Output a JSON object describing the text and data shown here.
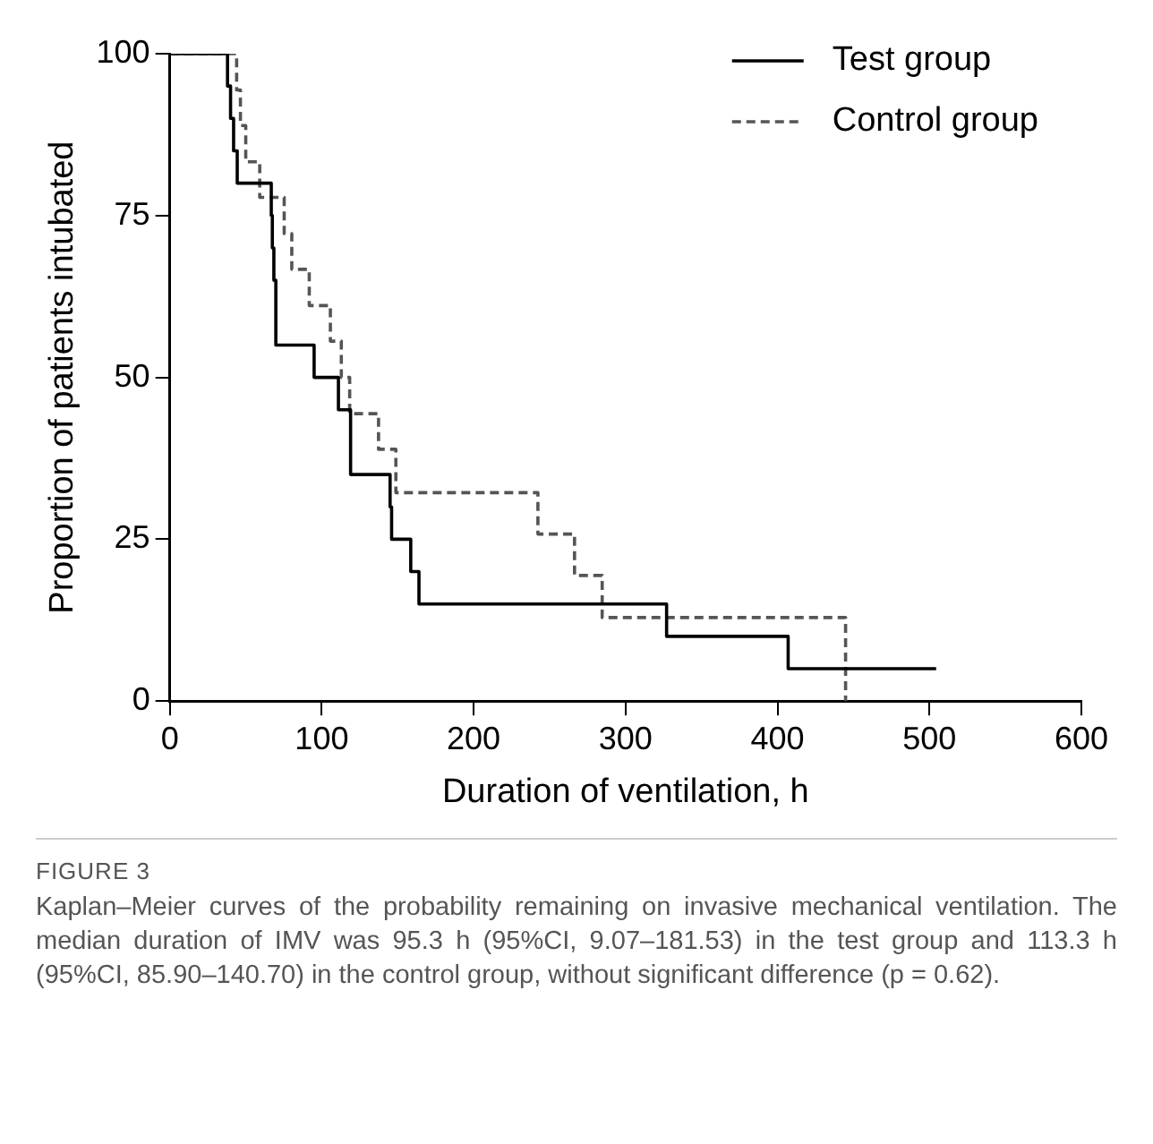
{
  "chart_data": {
    "type": "step",
    "xlabel": "Duration of ventilation, h",
    "ylabel": "Proportion of patients intubated",
    "xlim": [
      0,
      600
    ],
    "xticks": [
      0,
      100,
      200,
      300,
      400,
      500,
      600
    ],
    "ylim": [
      0,
      100
    ],
    "yticks": [
      0,
      25,
      50,
      75,
      100
    ],
    "grid": false,
    "legend": "top right",
    "marker": "none",
    "series": [
      {
        "name": "Test group",
        "color": "#000000",
        "line_style": "solid",
        "x": [
          0,
          38,
          40,
          42,
          44.4,
          66.8,
          67.5,
          68.5,
          69.8,
          95,
          111,
          119,
          145,
          146,
          158.6,
          164,
          327,
          407,
          504.4
        ],
        "values": [
          100,
          95,
          90,
          85,
          80,
          75,
          70,
          65,
          55,
          50,
          45,
          35,
          30,
          25,
          20,
          15,
          10,
          5,
          5
        ]
      },
      {
        "name": "Control group",
        "color": "#555555",
        "line_style": "dashed",
        "x": [
          0,
          44,
          46.5,
          50,
          59.2,
          75.3,
          80.3,
          91.8,
          105.7,
          112.9,
          118.4,
          137.4,
          148.8,
          242.3,
          266.4,
          284.6,
          444.8
        ],
        "values": [
          100,
          94.4,
          88.9,
          83.3,
          77.8,
          72.2,
          66.7,
          61.1,
          55.6,
          50,
          44.4,
          38.9,
          32.2,
          25.8,
          19.4,
          12.9,
          0
        ]
      }
    ],
    "annotations": [
      "FIGURE 3",
      "Kaplan–Meier curves of the probability remaining on invasive mechanical ventilation. The median duration of IMV was 95.3 h (95%CI, 9.07–181.53) in the test group and 113.3 h (95%CI, 85.90–140.70) in the control group, without significant difference (p = 0.62)."
    ]
  }
}
